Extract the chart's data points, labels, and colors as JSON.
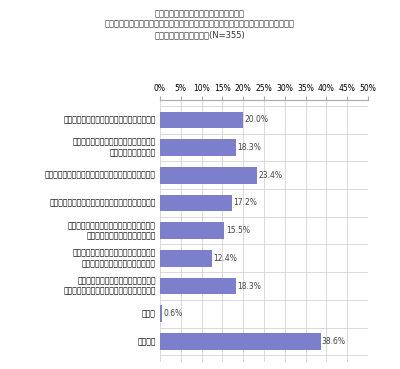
{
  "title_line1": "『アニメ』ジャンルを推している方へ、",
  "title_line2": "コロナによる自粛中と緩和後を比べて、推し活をするうえで感じた変化は何ですか。",
  "title_line3": "（お答えはいくつでも）(N=355)",
  "categories": [
    "イベント・ライブ等でのファンの声出し解禁",
    "オフ会やコミックマーケット、ライブ等\nリアルイベントの増加",
    "コラボカフェや店頭でのコラボキャンペーン等の増加",
    "地方のイベントや公演など遠征に行きやすくなった",
    "グッズを買うためなどチケットがなくても\nイベント会場へ行きやすくなった",
    "現地での応援が増え、公式グッズ以外に\n手作りグッズ関連の購入品が増えた",
    "囲りで推し活をしている人が増えた／\n推し活をしている層（ファン層）が広がった",
    "その他",
    "特になし"
  ],
  "values": [
    20.0,
    18.3,
    23.4,
    17.2,
    15.5,
    12.4,
    18.3,
    0.6,
    38.6
  ],
  "bar_color": "#7b7fcc",
  "xlim": [
    0,
    50
  ],
  "xticks": [
    0,
    5,
    10,
    15,
    20,
    25,
    30,
    35,
    40,
    45,
    50
  ],
  "xtick_labels": [
    "0%",
    "5%",
    "10%",
    "15%",
    "20%",
    "25%",
    "30%",
    "35%",
    "40%",
    "45%",
    "50%"
  ],
  "value_label_fontsize": 5.5,
  "category_fontsize": 5.5,
  "title_fontsize": 6.0,
  "bg_color": "#ffffff"
}
